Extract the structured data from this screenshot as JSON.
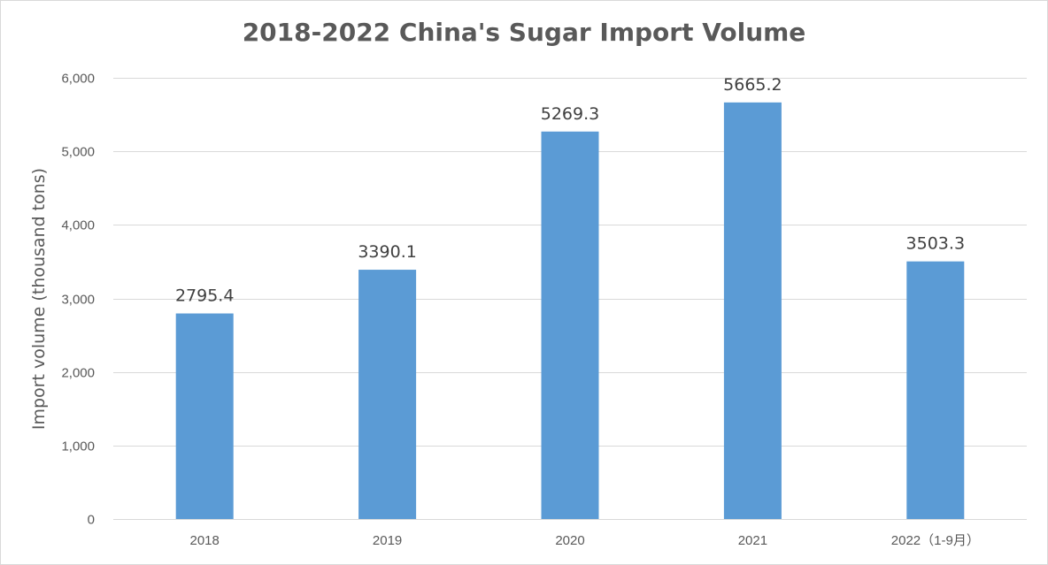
{
  "chart_data": {
    "type": "bar",
    "title": "2018-2022 China's Sugar Import Volume",
    "xlabel": "",
    "ylabel": "Import volume (thousand tons)",
    "categories": [
      "2018",
      "2019",
      "2020",
      "2021",
      "2022（1-9月）"
    ],
    "values": [
      2795.4,
      3390.1,
      5269.3,
      5665.2,
      3503.3
    ],
    "data_labels": [
      "2795.4",
      "3390.1",
      "5269.3",
      "5665.2",
      "3503.3"
    ],
    "y_ticks": [
      0,
      1000,
      2000,
      3000,
      4000,
      5000,
      6000
    ],
    "y_tick_labels": [
      "0",
      "1,000",
      "2,000",
      "3,000",
      "4,000",
      "5,000",
      "6,000"
    ],
    "ylim": [
      0,
      6000
    ],
    "grid": true,
    "legend": "none",
    "colors": {
      "bar": "#5b9bd5",
      "grid": "#d9d9d9",
      "title": "#595959",
      "tick": "#595959",
      "data_label": "#404040"
    }
  }
}
